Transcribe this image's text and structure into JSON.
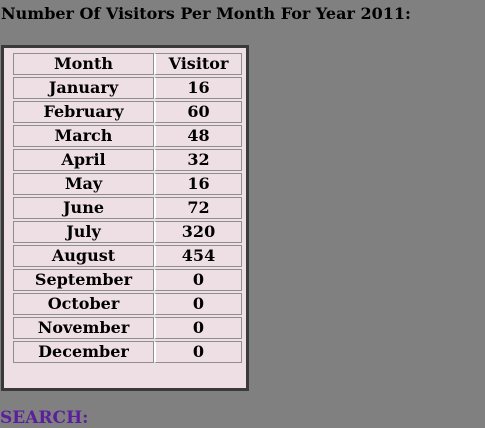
{
  "page": {
    "title": "Number Of Visitors Per Month For Year 2011:",
    "search_label": "SEARCH:"
  },
  "table": {
    "headers": [
      "Month",
      "Visitor"
    ],
    "rows": [
      {
        "month": "January",
        "visitor": "16"
      },
      {
        "month": "February",
        "visitor": "60"
      },
      {
        "month": "March",
        "visitor": "48"
      },
      {
        "month": "April",
        "visitor": "32"
      },
      {
        "month": "May",
        "visitor": "16"
      },
      {
        "month": "June",
        "visitor": "72"
      },
      {
        "month": "July",
        "visitor": "320"
      },
      {
        "month": "August",
        "visitor": "454"
      },
      {
        "month": "September",
        "visitor": "0"
      },
      {
        "month": "October",
        "visitor": "0"
      },
      {
        "month": "November",
        "visitor": "0"
      },
      {
        "month": "December",
        "visitor": "0"
      }
    ]
  },
  "colors": {
    "background": "#808080",
    "table_fill": "#eedfe5",
    "search_text": "#5b1f9e"
  }
}
